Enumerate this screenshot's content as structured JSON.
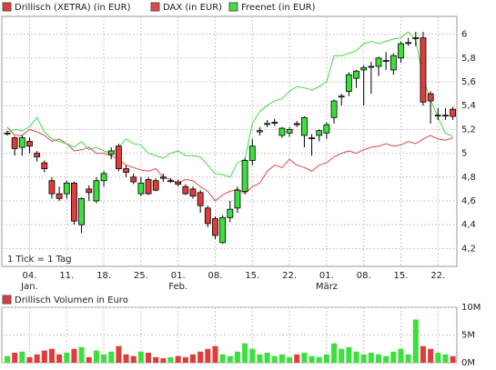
{
  "chart_data": [
    {
      "type": "candlestick",
      "annotation": "1 Tick = 1 Tag",
      "categories": [
        null,
        null,
        null,
        "04.",
        null,
        null,
        null,
        null,
        "11.",
        null,
        null,
        null,
        null,
        "18.",
        null,
        null,
        null,
        null,
        "25.",
        null,
        null,
        null,
        null,
        "01.",
        null,
        null,
        null,
        null,
        "08.",
        null,
        null,
        null,
        null,
        "15.",
        null,
        null,
        null,
        null,
        "22.",
        null,
        null,
        null,
        null,
        "01.",
        null,
        null,
        null,
        null,
        "08.",
        null,
        null,
        null,
        null,
        "15.",
        null,
        null,
        null,
        null,
        "22.",
        null,
        null
      ],
      "month_categories": [
        null,
        null,
        null,
        "Jan.",
        null,
        null,
        null,
        null,
        null,
        null,
        null,
        null,
        null,
        null,
        null,
        null,
        null,
        null,
        null,
        null,
        null,
        null,
        null,
        "Feb.",
        null,
        null,
        null,
        null,
        null,
        null,
        null,
        null,
        null,
        null,
        null,
        null,
        null,
        null,
        null,
        null,
        null,
        null,
        null,
        "März",
        null,
        null,
        null,
        null,
        null,
        null,
        null,
        null,
        null,
        null,
        null,
        null,
        null,
        null,
        null,
        null,
        null
      ],
      "ylim": [
        4.05,
        6.15
      ],
      "yticks": [
        {
          "value": 4.2,
          "label": "4,2"
        },
        {
          "value": 4.4,
          "label": "4,4"
        },
        {
          "value": 4.6,
          "label": "4,6"
        },
        {
          "value": 4.8,
          "label": "4,8"
        },
        5,
        {
          "value": 5.2,
          "label": "5,2"
        },
        {
          "value": 5.4,
          "label": "5,4"
        },
        {
          "value": 5.6,
          "label": "5,6"
        },
        {
          "value": 5.8,
          "label": "5,8"
        },
        6
      ],
      "grid": true,
      "series": [
        {
          "name": "Drillisch (XETRA) (in EUR)",
          "type": "candlestick",
          "color": "#e03c3c",
          "up_color": "#3ce03c",
          "open": [
            5.17,
            5.13,
            5.05,
            5.1,
            5.0,
            4.92,
            4.77,
            4.66,
            4.66,
            4.75,
            4.4,
            4.7,
            4.6,
            4.77,
            4.99,
            5.06,
            4.87,
            4.8,
            4.66,
            4.78,
            4.77,
            4.8,
            4.77,
            4.76,
            4.72,
            4.7,
            4.67,
            4.54,
            4.45,
            4.25,
            4.46,
            4.54,
            4.68,
            4.94,
            5.18,
            5.25,
            5.26,
            5.15,
            5.17,
            5.25,
            5.15,
            5.13,
            5.15,
            5.17,
            5.3,
            5.48,
            5.52,
            5.63,
            5.7,
            5.73,
            5.73,
            5.78,
            5.7,
            5.8,
            5.93,
            5.97,
            5.97,
            5.5,
            5.32,
            5.32,
            5.37
          ],
          "high": [
            5.19,
            5.14,
            5.15,
            5.13,
            5.02,
            4.94,
            4.8,
            4.72,
            4.77,
            4.76,
            4.63,
            4.73,
            4.8,
            4.85,
            5.05,
            5.08,
            4.9,
            4.83,
            4.8,
            4.8,
            4.79,
            4.83,
            4.79,
            4.78,
            4.74,
            4.72,
            4.69,
            4.56,
            4.47,
            4.48,
            4.6,
            4.72,
            4.96,
            5.12,
            5.22,
            5.28,
            5.29,
            5.22,
            5.22,
            5.27,
            5.31,
            5.16,
            5.2,
            5.26,
            5.45,
            5.5,
            5.68,
            5.7,
            5.74,
            5.77,
            5.81,
            5.85,
            5.84,
            5.94,
            5.97,
            6.02,
            6.02,
            5.52,
            5.38,
            5.38,
            5.39
          ],
          "low": [
            5.15,
            4.98,
            4.98,
            5.0,
            4.93,
            4.84,
            4.62,
            4.6,
            4.62,
            4.4,
            4.33,
            4.6,
            4.58,
            4.72,
            4.95,
            4.85,
            4.8,
            4.74,
            4.64,
            4.65,
            4.68,
            4.76,
            4.75,
            4.72,
            4.65,
            4.62,
            4.5,
            4.38,
            4.28,
            4.24,
            4.42,
            4.5,
            4.66,
            4.9,
            5.15,
            5.22,
            5.23,
            5.13,
            5.14,
            5.22,
            5.05,
            4.98,
            5.1,
            5.12,
            5.25,
            5.4,
            5.48,
            5.55,
            5.4,
            5.5,
            5.65,
            5.7,
            5.66,
            5.76,
            5.9,
            5.9,
            5.4,
            5.25,
            5.28,
            5.28,
            5.28
          ],
          "close": [
            5.17,
            5.04,
            5.13,
            5.06,
            4.97,
            4.87,
            4.66,
            4.62,
            4.75,
            4.43,
            4.62,
            4.67,
            4.77,
            4.83,
            5.02,
            4.87,
            4.84,
            4.76,
            4.75,
            4.66,
            4.69,
            4.79,
            4.77,
            4.74,
            4.66,
            4.64,
            4.56,
            4.41,
            4.31,
            4.46,
            4.53,
            4.69,
            4.94,
            5.06,
            5.19,
            5.25,
            5.26,
            5.21,
            5.2,
            5.24,
            5.3,
            5.13,
            5.19,
            5.24,
            5.44,
            5.48,
            5.66,
            5.69,
            5.72,
            5.73,
            5.8,
            5.78,
            5.82,
            5.92,
            5.93,
            5.97,
            5.43,
            5.44,
            5.32,
            5.32,
            5.31
          ]
        },
        {
          "name": "DAX (in EUR)",
          "type": "line",
          "color": "#e04848",
          "values": [
            5.22,
            5.15,
            5.15,
            5.2,
            5.18,
            5.15,
            5.1,
            5.12,
            5.08,
            5.02,
            5.03,
            5.05,
            5.0,
            5.0,
            4.98,
            4.95,
            4.9,
            4.88,
            4.86,
            4.85,
            4.87,
            4.8,
            4.78,
            4.75,
            4.78,
            4.77,
            4.72,
            4.68,
            4.6,
            4.65,
            4.68,
            4.7,
            4.66,
            4.72,
            4.75,
            4.85,
            4.9,
            4.88,
            4.95,
            4.9,
            4.88,
            4.85,
            4.9,
            4.92,
            4.97,
            5.0,
            5.02,
            5.0,
            5.03,
            5.05,
            5.06,
            5.08,
            5.06,
            5.07,
            5.1,
            5.08,
            5.12,
            5.15,
            5.12,
            5.11,
            5.13
          ]
        },
        {
          "name": "Freenet (in EUR)",
          "type": "line",
          "color": "#48d848",
          "values": [
            5.18,
            5.2,
            5.19,
            5.22,
            5.3,
            5.18,
            5.12,
            5.1,
            5.08,
            5.05,
            5.1,
            5.03,
            5.05,
            5.02,
            5.0,
            5.05,
            5.12,
            5.08,
            5.07,
            5.0,
            4.98,
            4.96,
            5.0,
            5.02,
            4.98,
            4.98,
            4.97,
            4.9,
            4.83,
            4.82,
            4.8,
            4.92,
            4.95,
            5.25,
            5.35,
            5.4,
            5.44,
            5.46,
            5.52,
            5.56,
            5.55,
            5.53,
            5.56,
            5.6,
            5.82,
            5.82,
            5.84,
            5.86,
            5.92,
            5.94,
            5.92,
            5.94,
            5.96,
            5.97,
            6.02,
            5.95,
            5.63,
            5.45,
            5.3,
            5.17,
            5.14
          ]
        }
      ]
    },
    {
      "type": "bar",
      "series": [
        {
          "name": "Drillisch Volumen in Euro",
          "color": "#e03c3c",
          "up_color": "#3ce03c",
          "values": [
            1200000,
            1800000,
            2000000,
            1000000,
            1500000,
            2200000,
            2500000,
            1500000,
            1800000,
            2500000,
            2800000,
            1000000,
            2200000,
            1500000,
            2000000,
            3000000,
            1500000,
            1200000,
            2000000,
            1800000,
            1000000,
            800000,
            1000000,
            1200000,
            1000000,
            1500000,
            2000000,
            2500000,
            3000000,
            1500000,
            1200000,
            2000000,
            3500000,
            2500000,
            1500000,
            1800000,
            1200000,
            1500000,
            1000000,
            1500000,
            1800000,
            1200000,
            1000000,
            1500000,
            3500000,
            2500000,
            2800000,
            2000000,
            1500000,
            1800000,
            1500000,
            1200000,
            2000000,
            2500000,
            1500000,
            7800000,
            3000000,
            2500000,
            1800000,
            1500000,
            1200000
          ]
        }
      ],
      "ylim": [
        0,
        10000000
      ],
      "yticks": [
        {
          "value": 0,
          "label": "0M"
        },
        {
          "value": 5000000,
          "label": "5M"
        },
        {
          "value": 10000000,
          "label": "10M"
        }
      ],
      "grid": true
    }
  ]
}
